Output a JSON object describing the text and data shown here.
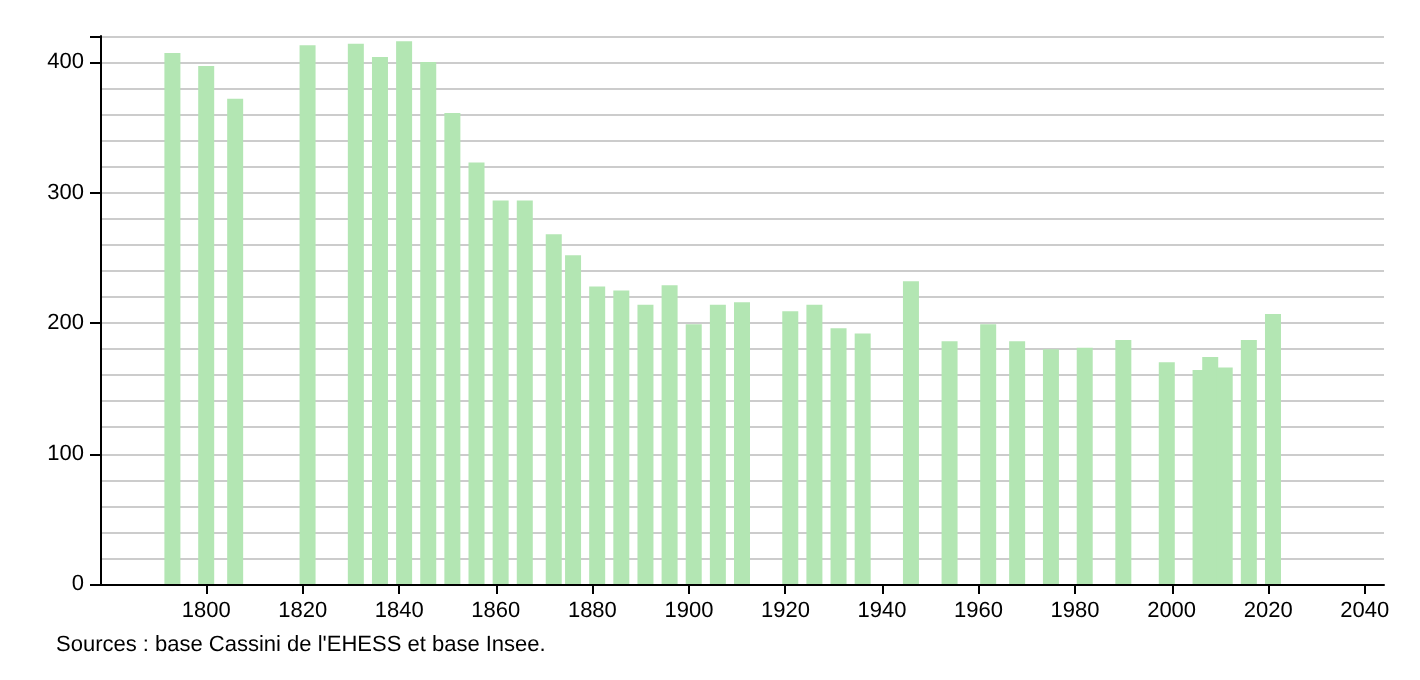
{
  "chart_data": {
    "type": "bar",
    "x": [
      1793,
      1800,
      1806,
      1821,
      1831,
      1836,
      1841,
      1846,
      1851,
      1856,
      1861,
      1866,
      1872,
      1876,
      1881,
      1886,
      1891,
      1896,
      1901,
      1906,
      1911,
      1921,
      1926,
      1931,
      1936,
      1946,
      1954,
      1962,
      1968,
      1975,
      1982,
      1990,
      1999,
      2006,
      2008,
      2011,
      2016,
      2021
    ],
    "values": [
      407,
      397,
      372,
      413,
      414,
      404,
      416,
      400,
      361,
      323,
      294,
      294,
      268,
      252,
      228,
      225,
      214,
      229,
      199,
      214,
      216,
      209,
      214,
      196,
      192,
      232,
      186,
      199,
      186,
      180,
      181,
      187,
      170,
      164,
      174,
      166,
      187,
      207
    ],
    "color": "#b3e6b3",
    "xlim": [
      1778,
      2044
    ],
    "xticks": [
      1800,
      1820,
      1840,
      1860,
      1880,
      1900,
      1920,
      1940,
      1960,
      1980,
      2000,
      2020,
      2040
    ],
    "ylim": [
      0,
      420
    ],
    "yticks": [
      0,
      100,
      200,
      300,
      400
    ],
    "grid": "y",
    "annotations": [
      "Sources : base Cassini de l'EHESS et base Insee."
    ]
  }
}
